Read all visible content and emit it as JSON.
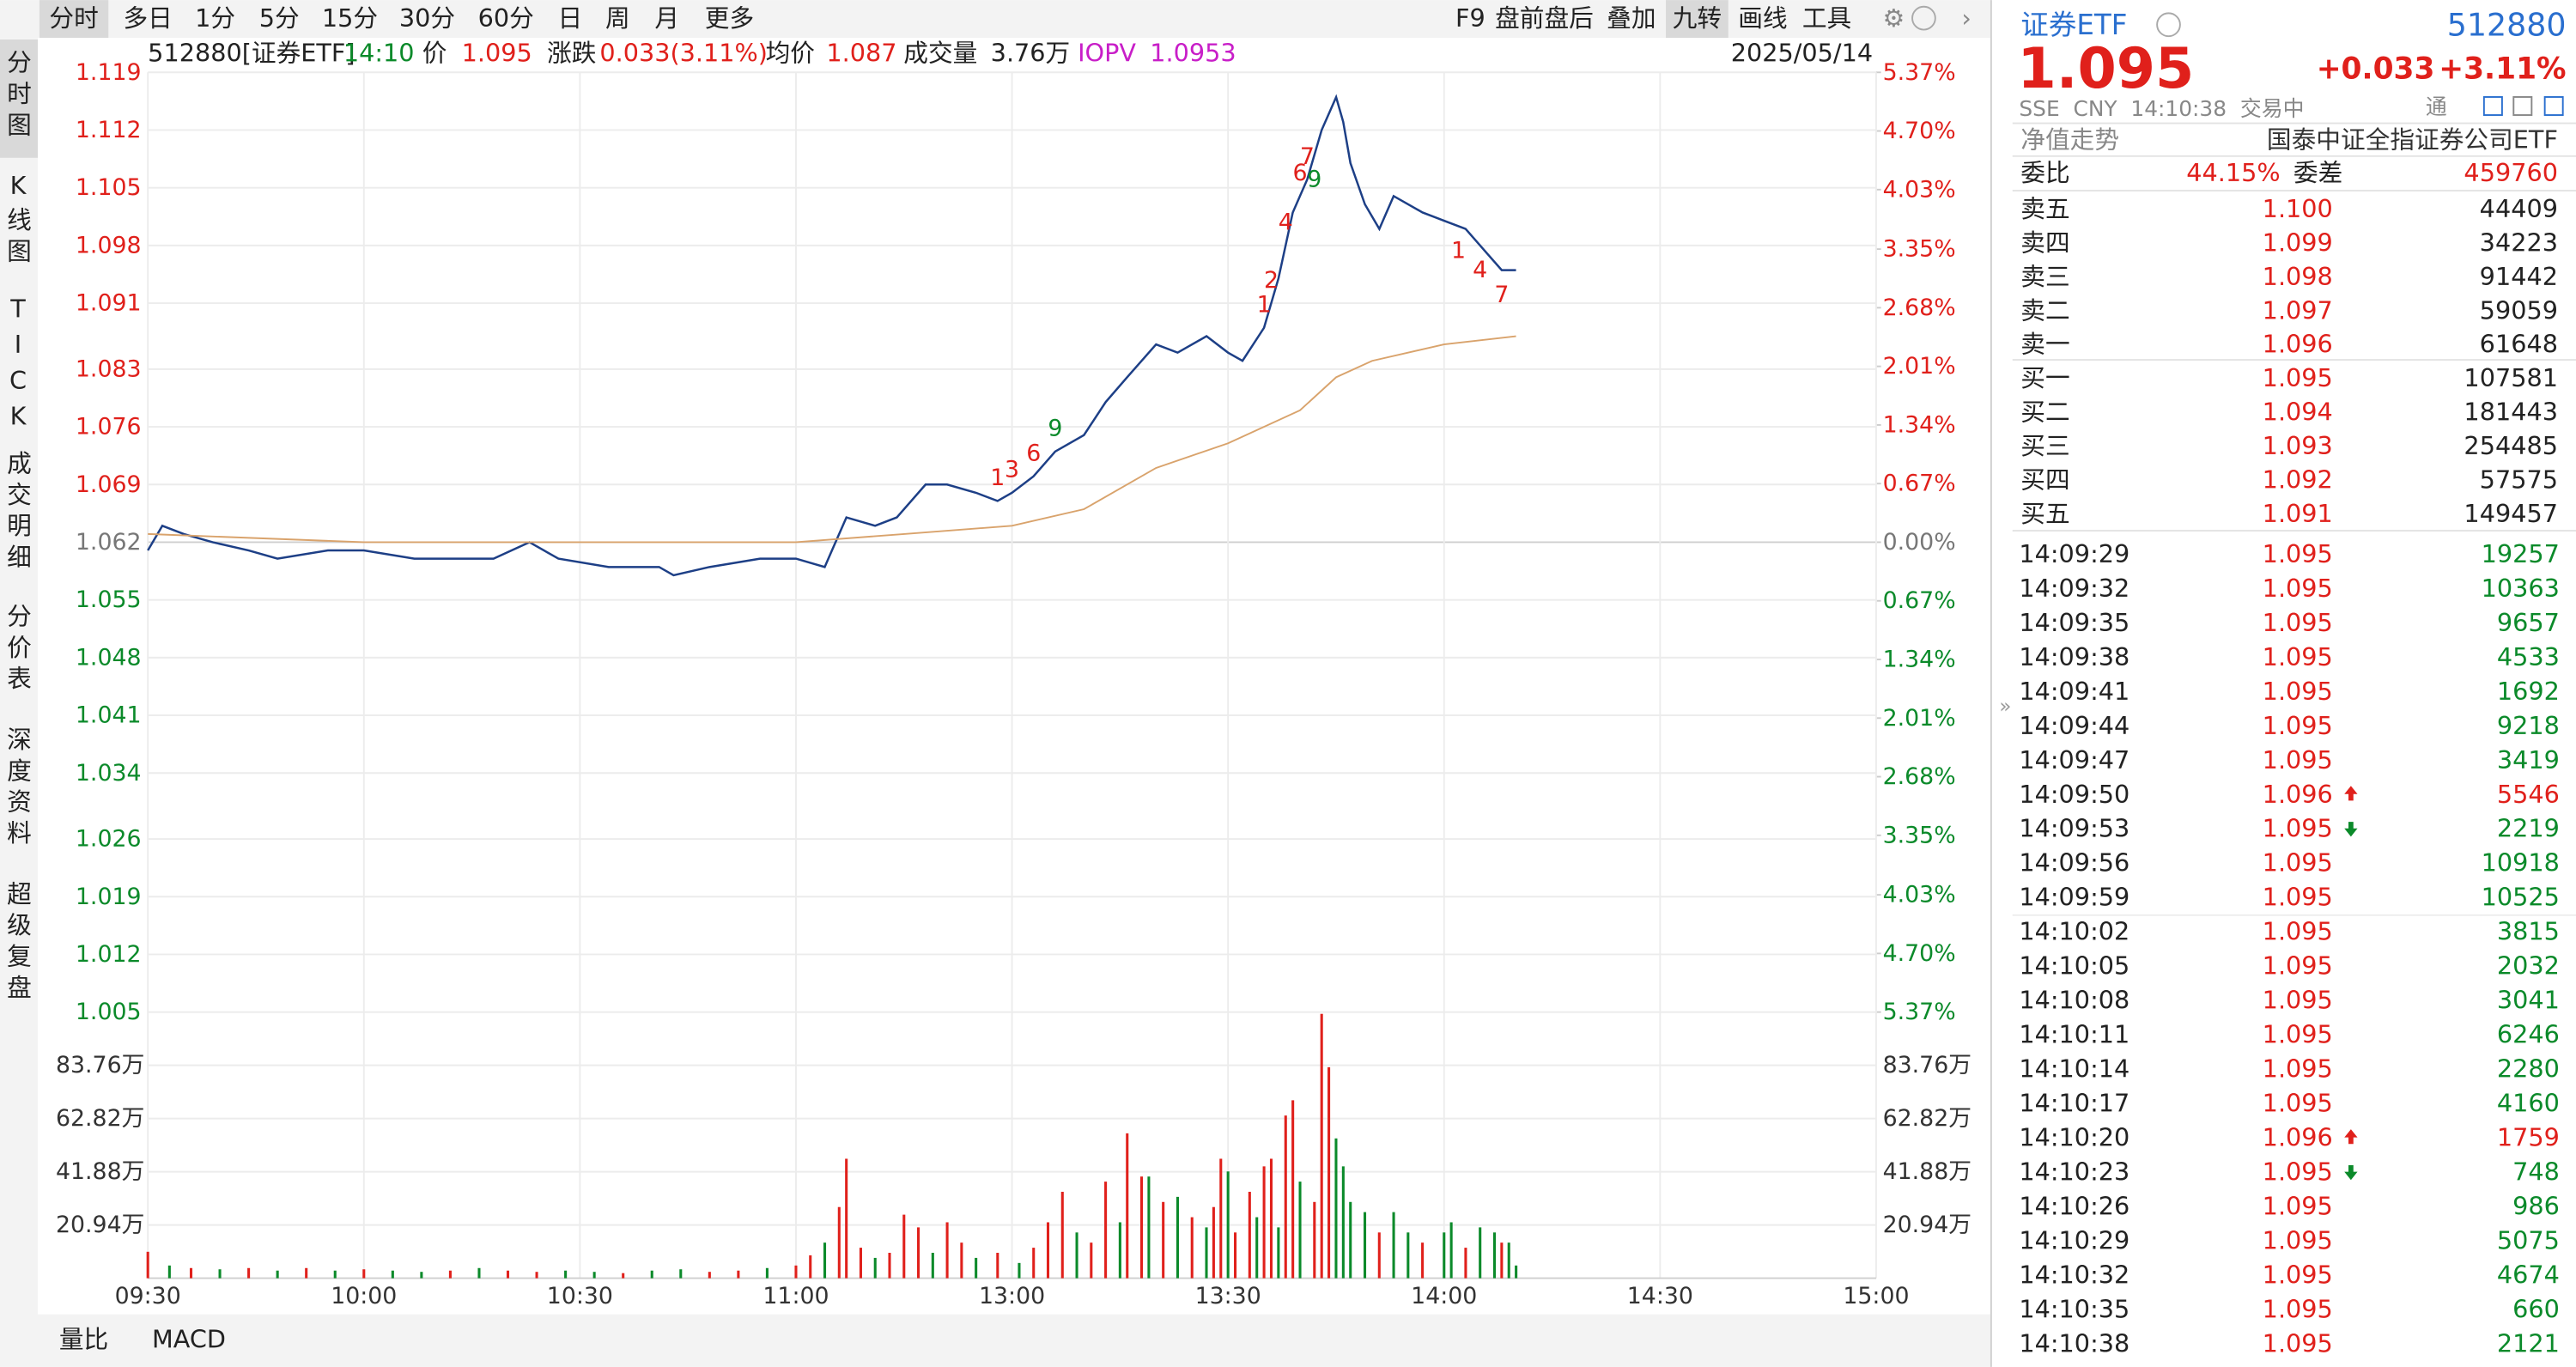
{
  "toolbar": {
    "periods": [
      "分时",
      "多日",
      "1分",
      "5分",
      "15分",
      "30分",
      "60分",
      "日",
      "周",
      "月",
      "更多"
    ],
    "selected": 0,
    "tools": [
      "F9",
      "盘前盘后",
      "叠加",
      "九转",
      "画线",
      "工具"
    ],
    "active_tool": 3
  },
  "sidebar": {
    "items": [
      "分时图",
      "K线图",
      "TICK",
      "成交明细",
      "分价表",
      "深度资料",
      "超级复盘"
    ],
    "selected": 0
  },
  "info": {
    "code": "512880[证券ETF]",
    "time": "14:10",
    "price_label": "价",
    "price": "1.095",
    "change_label": "涨跌",
    "change": "0.033(3.11%)",
    "avg_label": "均价",
    "avg": "1.087",
    "volume_label": "成交量",
    "volume": "3.76万",
    "iopv_label": "IOPV",
    "iopv": "1.0953",
    "date": "2025/05/14"
  },
  "chart_data": [
    {
      "type": "line",
      "up_color": "#e0201b",
      "down_color": "#0b8a2a",
      "flat_color": "#777777",
      "grid": true,
      "x": [
        "09:30",
        "09:32",
        "09:35",
        "09:39",
        "09:44",
        "09:48",
        "09:55",
        "10:00",
        "10:07",
        "10:14",
        "10:18",
        "10:23",
        "10:27",
        "10:34",
        "10:41",
        "10:43",
        "10:48",
        "10:55",
        "11:00",
        "11:04",
        "11:05",
        "11:07",
        "11:11",
        "11:14",
        "11:18",
        "11:21",
        "11:25",
        "11:28",
        "13:00",
        "13:03",
        "13:06",
        "13:10",
        "13:13",
        "13:16",
        "13:20",
        "13:23",
        "13:27",
        "13:30",
        "13:32",
        "13:35",
        "13:37",
        "13:39",
        "13:41",
        "13:43",
        "13:45",
        "13:46",
        "13:47",
        "13:49",
        "13:51",
        "13:53",
        "13:57",
        "14:00",
        "14:03",
        "14:06",
        "14:08",
        "14:10"
      ],
      "series": [
        {
          "color": "#1d3f86",
          "values": [
            1.061,
            1.064,
            1.063,
            1.062,
            1.061,
            1.06,
            1.061,
            1.061,
            1.06,
            1.06,
            1.06,
            1.062,
            1.06,
            1.059,
            1.059,
            1.058,
            1.059,
            1.06,
            1.06,
            1.059,
            1.061,
            1.065,
            1.064,
            1.065,
            1.069,
            1.069,
            1.068,
            1.067,
            1.068,
            1.07,
            1.073,
            1.075,
            1.079,
            1.082,
            1.086,
            1.085,
            1.087,
            1.085,
            1.084,
            1.088,
            1.094,
            1.102,
            1.106,
            1.112,
            1.116,
            1.113,
            1.108,
            1.103,
            1.1,
            1.104,
            1.102,
            1.101,
            1.1,
            1.097,
            1.095,
            1.095
          ]
        },
        {
          "color": "#d9a36c",
          "x": [
            "09:30",
            "10:00",
            "10:30",
            "11:00",
            "11:15",
            "13:00",
            "13:10",
            "13:20",
            "13:30",
            "13:40",
            "13:45",
            "13:50",
            "14:00",
            "14:10"
          ],
          "values": [
            1.063,
            1.062,
            1.062,
            1.062,
            1.063,
            1.064,
            1.066,
            1.071,
            1.074,
            1.078,
            1.082,
            1.084,
            1.086,
            1.087
          ]
        }
      ],
      "xlim": [
        "09:30",
        "15:00"
      ],
      "xticks": [
        "09:30",
        "10:00",
        "10:30",
        "11:00",
        "13:00",
        "13:30",
        "14:00",
        "14:30",
        "15:00"
      ],
      "ylim": [
        1.005,
        1.119
      ],
      "yticks": [
        1.119,
        1.112,
        1.105,
        1.098,
        1.091,
        1.083,
        1.076,
        1.069,
        1.062,
        1.055,
        1.048,
        1.041,
        1.034,
        1.026,
        1.019,
        1.012,
        1.005
      ],
      "y2lim": [
        -5.37,
        5.37
      ],
      "y2ticks": [
        {
          "value": 5.37,
          "label": "5.37%"
        },
        {
          "value": 4.7,
          "label": "4.70%"
        },
        {
          "value": 4.03,
          "label": "4.03%"
        },
        {
          "value": 3.35,
          "label": "3.35%"
        },
        {
          "value": 2.68,
          "label": "2.68%"
        },
        {
          "value": 2.01,
          "label": "2.01%"
        },
        {
          "value": 1.34,
          "label": "1.34%"
        },
        {
          "value": 0.67,
          "label": "0.67%"
        },
        {
          "value": 0,
          "label": "0.00%"
        },
        {
          "value": -0.67,
          "label": "0.67%"
        },
        {
          "value": -1.34,
          "label": "1.34%"
        },
        {
          "value": -2.01,
          "label": "2.01%"
        },
        {
          "value": -2.68,
          "label": "2.68%"
        },
        {
          "value": -3.35,
          "label": "3.35%"
        },
        {
          "value": -4.03,
          "label": "4.03%"
        },
        {
          "value": -4.7,
          "label": "4.70%"
        },
        {
          "value": -5.37,
          "label": "5.37%"
        }
      ],
      "annotations": [
        {
          "text": "1",
          "x": "11:28",
          "color": "red",
          "position": "above"
        },
        {
          "text": "3",
          "x": "13:00",
          "color": "red",
          "position": "above"
        },
        {
          "text": "6",
          "x": "13:03",
          "color": "red",
          "position": "above"
        },
        {
          "text": "9",
          "x": "13:06",
          "color": "green",
          "position": "above"
        },
        {
          "text": "1",
          "x": "13:35",
          "color": "red",
          "position": "above"
        },
        {
          "text": "2",
          "x": "13:36",
          "color": "red",
          "position": "above"
        },
        {
          "text": "4",
          "x": "13:38",
          "color": "red",
          "position": "above"
        },
        {
          "text": "6",
          "x": "13:40",
          "color": "red",
          "position": "above"
        },
        {
          "text": "7",
          "x": "13:41",
          "color": "red",
          "position": "above"
        },
        {
          "text": "9",
          "x": "13:42",
          "color": "green",
          "position": "below"
        },
        {
          "text": "1",
          "x": "14:02",
          "color": "red",
          "position": "below"
        },
        {
          "text": "4",
          "x": "14:05",
          "color": "red",
          "position": "below"
        },
        {
          "text": "7",
          "x": "14:08",
          "color": "red",
          "position": "below"
        }
      ]
    },
    {
      "type": "bar",
      "x": [
        "09:30",
        "09:33",
        "09:36",
        "09:40",
        "09:44",
        "09:48",
        "09:52",
        "09:56",
        "10:00",
        "10:04",
        "10:08",
        "10:12",
        "10:16",
        "10:20",
        "10:24",
        "10:28",
        "10:32",
        "10:36",
        "10:40",
        "10:44",
        "10:48",
        "10:52",
        "10:56",
        "11:00",
        "11:02",
        "11:04",
        "11:06",
        "11:07",
        "11:09",
        "11:11",
        "11:13",
        "11:15",
        "11:17",
        "11:19",
        "11:21",
        "11:23",
        "11:25",
        "11:28",
        "13:01",
        "13:03",
        "13:05",
        "13:07",
        "13:09",
        "13:11",
        "13:13",
        "13:15",
        "13:16",
        "13:18",
        "13:19",
        "13:21",
        "13:23",
        "13:25",
        "13:27",
        "13:28",
        "13:29",
        "13:30",
        "13:31",
        "13:33",
        "13:34",
        "13:35",
        "13:36",
        "13:37",
        "13:38",
        "13:39",
        "13:40",
        "13:42",
        "13:43",
        "13:44",
        "13:45",
        "13:46",
        "13:47",
        "13:49",
        "13:51",
        "13:53",
        "13:55",
        "13:57",
        "14:00",
        "14:01",
        "14:03",
        "14:05",
        "14:07",
        "14:08",
        "14:09",
        "14:10"
      ],
      "values": [
        10.4,
        5,
        4,
        3.5,
        4,
        3,
        4,
        3,
        3.5,
        3,
        2.5,
        3,
        4,
        3,
        2.5,
        3,
        2.5,
        2,
        3,
        3.5,
        2.5,
        3,
        4,
        5,
        9,
        14,
        28,
        47,
        12,
        8,
        10,
        25,
        20,
        10,
        22,
        14,
        8,
        10,
        6,
        12,
        22,
        34,
        18,
        14,
        38,
        22,
        57,
        40,
        40,
        30,
        32,
        24,
        20,
        28,
        47,
        42,
        18,
        34,
        24,
        44,
        47,
        20,
        64,
        70,
        38,
        30,
        104,
        83,
        55,
        44,
        30,
        26,
        18,
        26,
        18,
        14,
        18,
        22,
        12,
        20,
        18,
        14,
        14,
        5
      ],
      "colors": [
        "r",
        "g",
        "r",
        "g",
        "r",
        "g",
        "r",
        "g",
        "r",
        "g",
        "g",
        "r",
        "g",
        "r",
        "r",
        "g",
        "g",
        "r",
        "g",
        "g",
        "r",
        "r",
        "g",
        "r",
        "r",
        "g",
        "r",
        "r",
        "r",
        "g",
        "r",
        "r",
        "r",
        "g",
        "r",
        "r",
        "g",
        "r",
        "g",
        "r",
        "r",
        "r",
        "g",
        "r",
        "r",
        "g",
        "r",
        "r",
        "g",
        "r",
        "g",
        "r",
        "g",
        "r",
        "r",
        "g",
        "r",
        "r",
        "g",
        "r",
        "r",
        "g",
        "r",
        "r",
        "g",
        "r",
        "r",
        "r",
        "g",
        "g",
        "g",
        "g",
        "r",
        "g",
        "g",
        "r",
        "g",
        "g",
        "r",
        "g",
        "g",
        "r",
        "g",
        "g"
      ],
      "ylim": [
        0,
        104.7
      ],
      "yticks": [
        {
          "value": 83.76,
          "label": "83.76万"
        },
        {
          "value": 62.82,
          "label": "62.82万"
        },
        {
          "value": 41.88,
          "label": "41.88万"
        },
        {
          "value": 20.94,
          "label": "20.94万"
        }
      ]
    }
  ],
  "bottom_tabs": [
    "量比",
    "MACD"
  ],
  "quote": {
    "name": "证券ETF",
    "code": "512880",
    "price": "1.095",
    "change": "+0.033",
    "change_pct": "+3.11%",
    "status": "SSE  CNY  14:10:38  交易中",
    "badge": "通",
    "nav_label": "净值走势",
    "fund_name": "国泰中证全指证券公司ETF",
    "ratio_label": "委比",
    "ratio": "44.15%",
    "diff_label": "委差",
    "diff": "459760",
    "sells": [
      [
        "卖五",
        "1.100",
        "44409"
      ],
      [
        "卖四",
        "1.099",
        "34223"
      ],
      [
        "卖三",
        "1.098",
        "91442"
      ],
      [
        "卖二",
        "1.097",
        "59059"
      ],
      [
        "卖一",
        "1.096",
        "61648"
      ]
    ],
    "buys": [
      [
        "买一",
        "1.095",
        "107581"
      ],
      [
        "买二",
        "1.094",
        "181443"
      ],
      [
        "买三",
        "1.093",
        "254485"
      ],
      [
        "买四",
        "1.092",
        "57575"
      ],
      [
        "买五",
        "1.091",
        "149457"
      ]
    ],
    "trades": [
      [
        "14:09:29",
        "1.095",
        "19257",
        null
      ],
      [
        "14:09:32",
        "1.095",
        "10363",
        null
      ],
      [
        "14:09:35",
        "1.095",
        "9657",
        null
      ],
      [
        "14:09:38",
        "1.095",
        "4533",
        null
      ],
      [
        "14:09:41",
        "1.095",
        "1692",
        null
      ],
      [
        "14:09:44",
        "1.095",
        "9218",
        null
      ],
      [
        "14:09:47",
        "1.095",
        "3419",
        null
      ],
      [
        "14:09:50",
        "1.096",
        "5546",
        "up"
      ],
      [
        "14:09:53",
        "1.095",
        "2219",
        "down"
      ],
      [
        "14:09:56",
        "1.095",
        "10918",
        null
      ],
      [
        "14:09:59",
        "1.095",
        "10525",
        null
      ],
      [
        "14:10:02",
        "1.095",
        "3815",
        null
      ],
      [
        "14:10:05",
        "1.095",
        "2032",
        null
      ],
      [
        "14:10:08",
        "1.095",
        "3041",
        null
      ],
      [
        "14:10:11",
        "1.095",
        "6246",
        null
      ],
      [
        "14:10:14",
        "1.095",
        "2280",
        null
      ],
      [
        "14:10:17",
        "1.095",
        "4160",
        null
      ],
      [
        "14:10:20",
        "1.096",
        "1759",
        "up"
      ],
      [
        "14:10:23",
        "1.095",
        "748",
        "down"
      ],
      [
        "14:10:26",
        "1.095",
        "986",
        null
      ],
      [
        "14:10:29",
        "1.095",
        "5075",
        null
      ],
      [
        "14:10:32",
        "1.095",
        "4674",
        null
      ],
      [
        "14:10:35",
        "1.095",
        "660",
        null
      ],
      [
        "14:10:38",
        "1.095",
        "2121",
        null
      ]
    ]
  }
}
